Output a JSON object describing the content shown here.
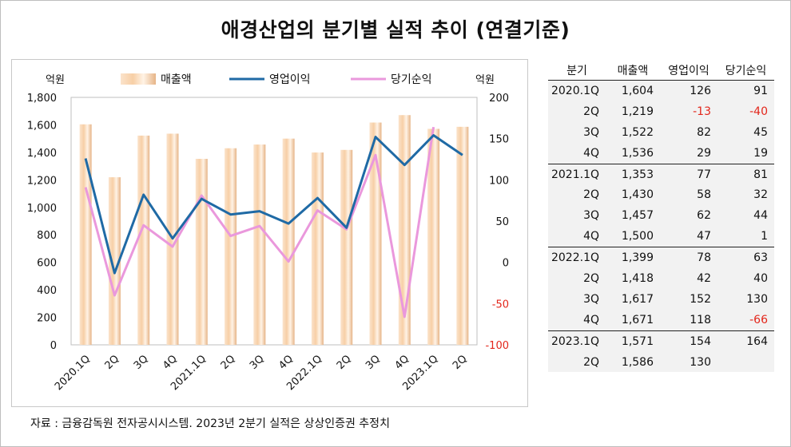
{
  "title": "애경산업의 분기별 실적 추이 (연결기준)",
  "source": "자료 : 금융감독원 전자공시시스템. 2023년 2분기 실적은 상상인증권 추정치",
  "colors": {
    "bar": "#f7cfa6",
    "bar_edge": "#e6b487",
    "operating": "#1f6aa5",
    "net": "#ea98dc",
    "negative": "#e3261b",
    "grid": "#bfbfbf"
  },
  "chart_data": {
    "type": "bar+line",
    "ylabel_left": "억원",
    "ylabel_right": "억원",
    "ylim_left": [
      0,
      1800
    ],
    "yticks_left": [
      "0",
      "200",
      "400",
      "600",
      "800",
      "1,000",
      "1,200",
      "1,400",
      "1,600",
      "1,800"
    ],
    "ylim_right": [
      -100,
      200
    ],
    "yticks_right": [
      "-100",
      "-50",
      "0",
      "50",
      "100",
      "150",
      "200"
    ],
    "legend_position": "top",
    "grid": "horizontal-none",
    "categories": [
      "2020.1Q",
      "2Q",
      "3Q",
      "4Q",
      "2021.1Q",
      "2Q",
      "3Q",
      "4Q",
      "2022.1Q",
      "2Q",
      "3Q",
      "4Q",
      "2023.1Q",
      "2Q"
    ],
    "series": [
      {
        "name": "매출액",
        "type": "bar",
        "axis": "left",
        "values": [
          1604,
          1219,
          1522,
          1536,
          1353,
          1430,
          1457,
          1500,
          1399,
          1418,
          1617,
          1671,
          1571,
          1586
        ]
      },
      {
        "name": "영업이익",
        "type": "line",
        "axis": "right",
        "values": [
          126,
          -13,
          82,
          29,
          77,
          58,
          62,
          47,
          78,
          42,
          152,
          118,
          154,
          130
        ]
      },
      {
        "name": "당기순익",
        "type": "line",
        "axis": "right",
        "values": [
          91,
          -40,
          45,
          19,
          81,
          32,
          44,
          1,
          63,
          40,
          130,
          -66,
          164,
          null
        ]
      }
    ]
  },
  "table": {
    "headers": [
      "분기",
      "매출액",
      "영업이익",
      "당기순익"
    ],
    "rows": [
      [
        "2020.1Q",
        "1,604",
        "126",
        "91"
      ],
      [
        "2Q",
        "1,219",
        "-13",
        "-40"
      ],
      [
        "3Q",
        "1,522",
        "82",
        "45"
      ],
      [
        "4Q",
        "1,536",
        "29",
        "19"
      ],
      [
        "2021.1Q",
        "1,353",
        "77",
        "81"
      ],
      [
        "2Q",
        "1,430",
        "58",
        "32"
      ],
      [
        "3Q",
        "1,457",
        "62",
        "44"
      ],
      [
        "4Q",
        "1,500",
        "47",
        "1"
      ],
      [
        "2022.1Q",
        "1,399",
        "78",
        "63"
      ],
      [
        "2Q",
        "1,418",
        "42",
        "40"
      ],
      [
        "3Q",
        "1,617",
        "152",
        "130"
      ],
      [
        "4Q",
        "1,671",
        "118",
        "-66"
      ],
      [
        "2023.1Q",
        "1,571",
        "154",
        "164"
      ],
      [
        "2Q",
        "1,586",
        "130",
        ""
      ]
    ]
  }
}
